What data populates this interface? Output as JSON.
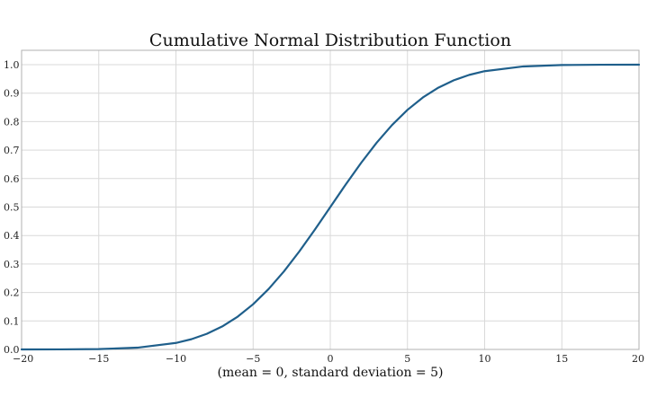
{
  "chart_data": {
    "type": "line",
    "title": "Cumulative Normal Distribution Function",
    "xlabel": "(mean = 0, standard deviation = 5)",
    "ylabel": "",
    "xlim": [
      -20,
      20
    ],
    "ylim": [
      0.0,
      1.0
    ],
    "xticks": [
      -20,
      -15,
      -10,
      -5,
      0,
      5,
      10,
      15,
      20
    ],
    "xtick_labels": [
      "−20",
      "−15",
      "−10",
      "−5",
      "0",
      "5",
      "10",
      "15",
      "20"
    ],
    "yticks": [
      0.0,
      0.1,
      0.2,
      0.3,
      0.4,
      0.5,
      0.6,
      0.7,
      0.8,
      0.9,
      1.0
    ],
    "ytick_labels": [
      "0.0",
      "0.1",
      "0.2",
      "0.3",
      "0.4",
      "0.5",
      "0.6",
      "0.7",
      "0.8",
      "0.9",
      "1.0"
    ],
    "grid": true,
    "series": [
      {
        "color": "#1f5f8b",
        "x": [
          -20,
          -17.5,
          -15,
          -12.5,
          -10,
          -9,
          -8,
          -7,
          -6,
          -5,
          -4,
          -3,
          -2,
          -1,
          0,
          1,
          2,
          3,
          4,
          5,
          6,
          7,
          8,
          9,
          10,
          12.5,
          15,
          17.5,
          20
        ],
        "y": [
          0.0,
          0.0002,
          0.0013,
          0.0062,
          0.0228,
          0.0359,
          0.0548,
          0.0808,
          0.1151,
          0.1587,
          0.2119,
          0.2743,
          0.3446,
          0.4207,
          0.5,
          0.5793,
          0.6554,
          0.7257,
          0.7881,
          0.8413,
          0.8849,
          0.9192,
          0.9452,
          0.9641,
          0.9772,
          0.9938,
          0.9987,
          0.9998,
          1.0
        ]
      }
    ]
  }
}
